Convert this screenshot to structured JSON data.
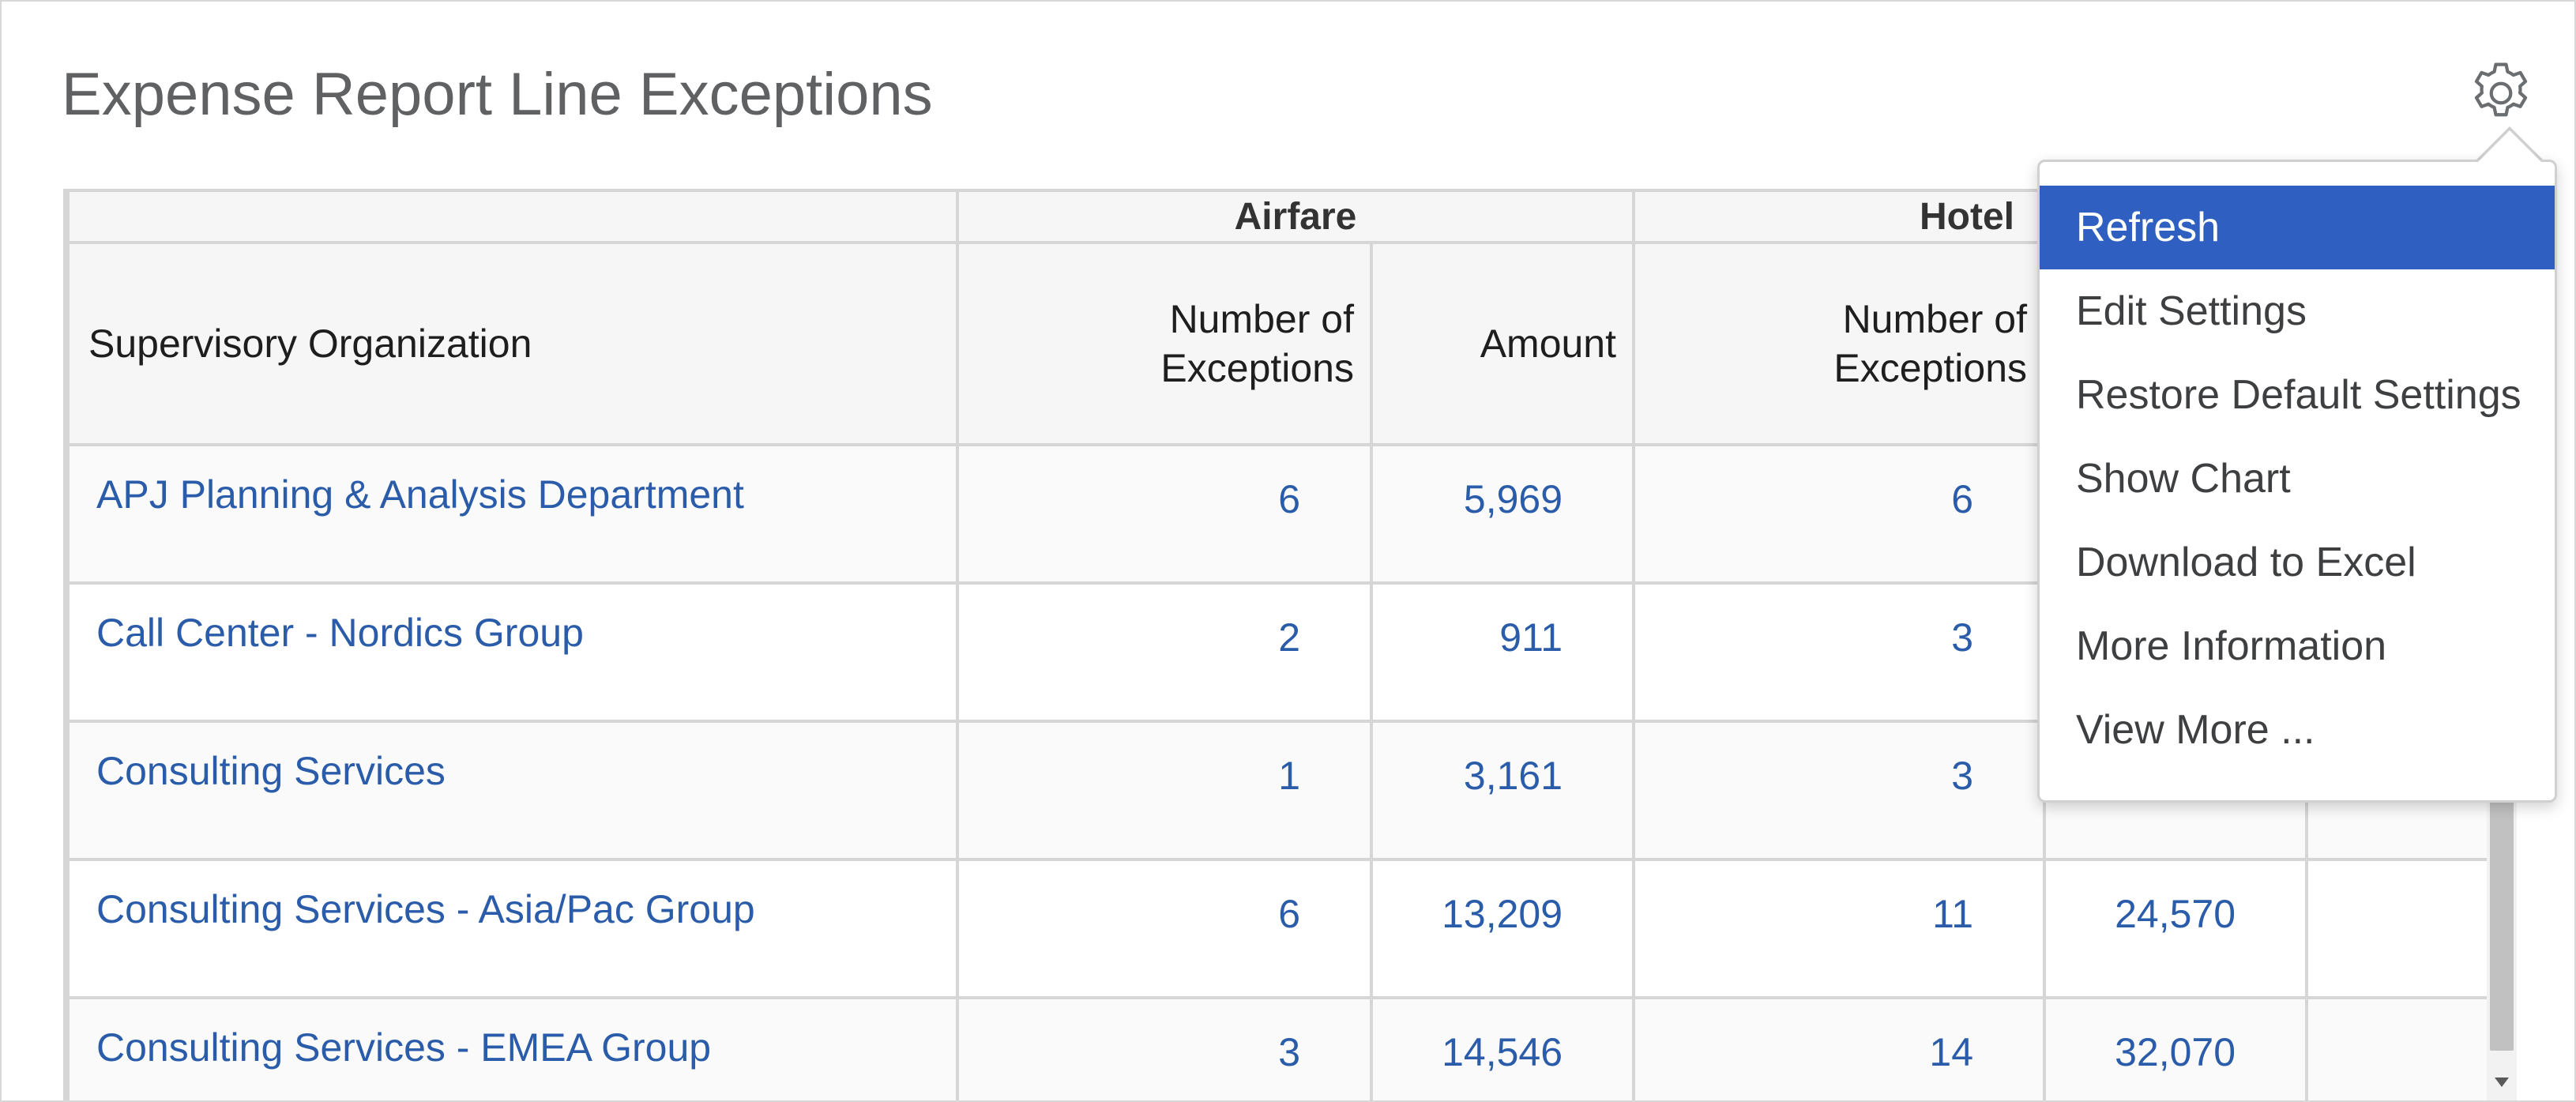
{
  "page": {
    "title": "Expense Report Line Exceptions"
  },
  "icons": {
    "settings": "gear-icon"
  },
  "table": {
    "groups": [
      "Airfare",
      "Hotel"
    ],
    "headers": {
      "org": "Supervisory Organization",
      "exceptions_line1": "Number of",
      "exceptions_line2": "Exceptions",
      "amount": "Amount"
    },
    "rows": [
      {
        "org": "APJ Planning & Analysis Department",
        "air_count": "6",
        "air_amount": "5,969",
        "hotel_count": "6",
        "hotel_amount": ""
      },
      {
        "org": "Call Center - Nordics Group",
        "air_count": "2",
        "air_amount": "911",
        "hotel_count": "3",
        "hotel_amount": ""
      },
      {
        "org": "Consulting Services",
        "air_count": "1",
        "air_amount": "3,161",
        "hotel_count": "3",
        "hotel_amount": ""
      },
      {
        "org": "Consulting Services - Asia/Pac Group",
        "air_count": "6",
        "air_amount": "13,209",
        "hotel_count": "11",
        "hotel_amount": "24,570"
      },
      {
        "org": "Consulting Services - EMEA Group",
        "air_count": "3",
        "air_amount": "14,546",
        "hotel_count": "14",
        "hotel_amount": "32,070"
      }
    ]
  },
  "menu": {
    "items": [
      {
        "label": "Refresh",
        "active": true
      },
      {
        "label": "Edit Settings"
      },
      {
        "label": "Restore Default Settings"
      },
      {
        "label": "Show Chart"
      },
      {
        "label": "Download to Excel"
      },
      {
        "label": "More Information"
      },
      {
        "label": "View More ..."
      }
    ]
  },
  "colors": {
    "link": "#2a5caa",
    "menu_active": "#2f5fc0"
  }
}
